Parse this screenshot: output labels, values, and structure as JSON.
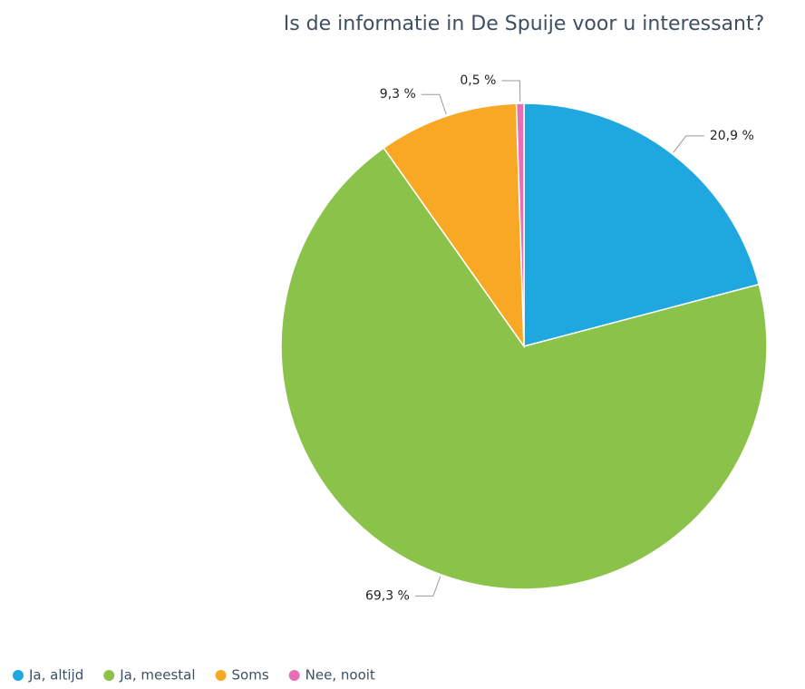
{
  "chart_data": {
    "type": "pie",
    "title": "Is de informatie in De Spuije voor u interessant?",
    "categories": [
      "Ja, altijd",
      "Ja, meestal",
      "Soms",
      "Nee, nooit"
    ],
    "values": [
      20.9,
      69.3,
      9.3,
      0.5
    ],
    "value_labels": [
      "20,9 %",
      "69,3 %",
      "9,3 %",
      "0,5 %"
    ],
    "colors": [
      "#1fa8e0",
      "#8bc34a",
      "#f9a825",
      "#e86fb5"
    ],
    "legend": "bottom-left"
  }
}
